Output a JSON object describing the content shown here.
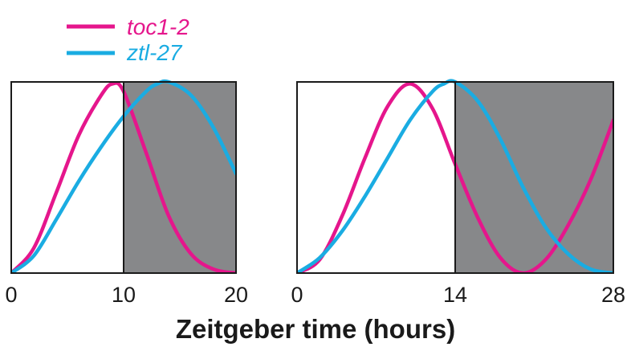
{
  "colors": {
    "toc1_2": "#e5168c",
    "ztl_27": "#1aace2",
    "dark_period": "#87888a",
    "axis": "#1a1a1a"
  },
  "legend": {
    "items": [
      {
        "label": "toc1-2",
        "color": "#e5168c"
      },
      {
        "label": "ztl-27",
        "color": "#1aace2"
      }
    ],
    "placement": "top-left"
  },
  "xlabel": "Zeitgeber time (hours)",
  "chart_data": [
    {
      "type": "line",
      "x_ticks": [
        "0",
        "10",
        "20"
      ],
      "xlim": [
        0,
        20
      ],
      "ylim": [
        0,
        1
      ],
      "dark_period": [
        10,
        20
      ],
      "series": [
        {
          "name": "toc1-2",
          "color": "#e5168c",
          "x": [
            0,
            2,
            4,
            6,
            8,
            9,
            10,
            12,
            14,
            16,
            18,
            20
          ],
          "y": [
            0,
            0.13,
            0.42,
            0.72,
            0.93,
            0.99,
            0.95,
            0.63,
            0.3,
            0.1,
            0.02,
            0
          ]
        },
        {
          "name": "ztl-27",
          "color": "#1aace2",
          "x": [
            0,
            2,
            4,
            6,
            8,
            10,
            12,
            13,
            14,
            16,
            18,
            20
          ],
          "y": [
            0,
            0.09,
            0.28,
            0.48,
            0.66,
            0.82,
            0.95,
            0.99,
            1.0,
            0.93,
            0.76,
            0.52
          ]
        }
      ]
    },
    {
      "type": "line",
      "x_ticks": [
        "0",
        "14",
        "28"
      ],
      "xlim": [
        0,
        28
      ],
      "ylim": [
        0,
        1
      ],
      "dark_period": [
        14,
        28
      ],
      "series": [
        {
          "name": "toc1-2",
          "color": "#e5168c",
          "x": [
            0,
            2,
            4,
            6,
            8,
            10,
            12,
            14,
            16,
            18,
            20,
            22,
            24,
            26,
            28
          ],
          "y": [
            0,
            0.07,
            0.3,
            0.6,
            0.87,
            0.99,
            0.86,
            0.57,
            0.29,
            0.08,
            0.0,
            0.07,
            0.25,
            0.49,
            0.8
          ]
        },
        {
          "name": "ztl-27",
          "color": "#1aace2",
          "x": [
            0,
            2,
            4,
            6,
            8,
            10,
            12,
            13,
            14,
            16,
            18,
            20,
            22,
            24,
            26,
            28
          ],
          "y": [
            0,
            0.08,
            0.22,
            0.4,
            0.6,
            0.8,
            0.95,
            0.99,
            1.0,
            0.9,
            0.7,
            0.45,
            0.24,
            0.1,
            0.02,
            0
          ]
        }
      ]
    }
  ]
}
